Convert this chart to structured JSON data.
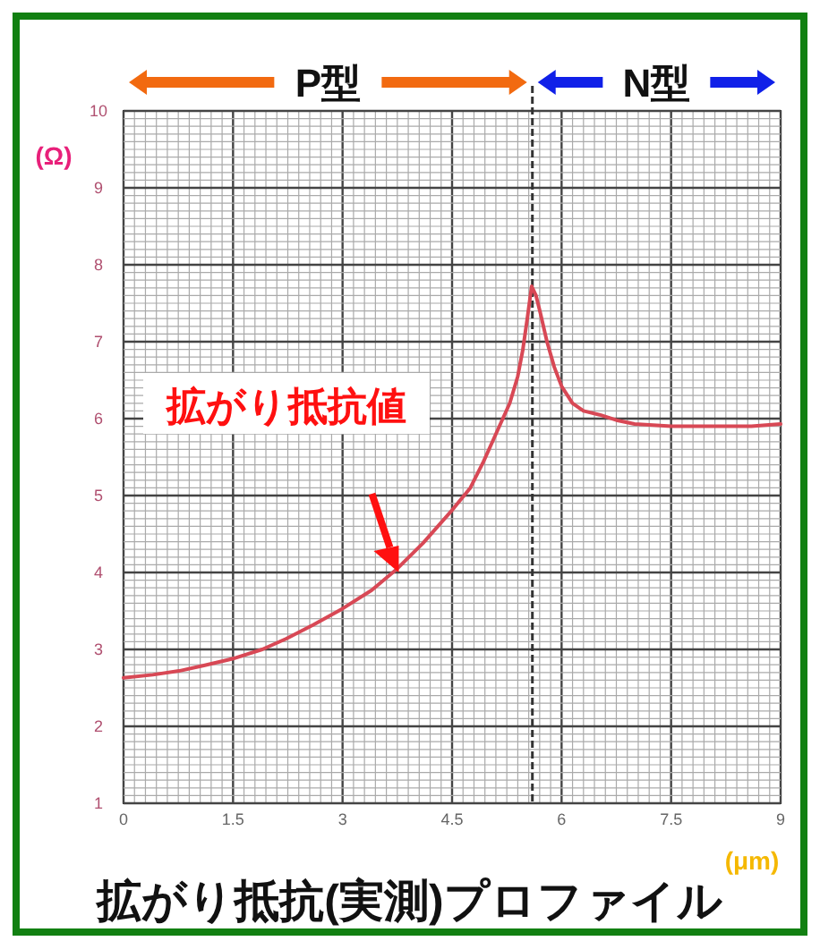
{
  "chart_data": {
    "type": "line",
    "title": "拡がり抵抗(実測)プロファイル",
    "xlabel": "(μm)",
    "ylabel": "(Ω)",
    "series": [
      {
        "color": "#d84855",
        "x": [
          0,
          0.4,
          0.76,
          1.1,
          1.5,
          1.9,
          2.23,
          2.6,
          3,
          3.4,
          3.75,
          4.1,
          4.5,
          4.75,
          4.93,
          5.1,
          5.29,
          5.4,
          5.47,
          5.53,
          5.59,
          5.65,
          5.71,
          5.8,
          5.9,
          6.0,
          6.15,
          6.3,
          6.52,
          6.75,
          7.0,
          7.5,
          8.0,
          8.24,
          8.6,
          9
        ],
        "values": [
          2.63,
          2.67,
          2.72,
          2.79,
          2.88,
          3.0,
          3.14,
          3.32,
          3.53,
          3.77,
          4.05,
          4.38,
          4.81,
          5.1,
          5.44,
          5.8,
          6.2,
          6.55,
          6.9,
          7.3,
          7.72,
          7.6,
          7.37,
          7.0,
          6.67,
          6.42,
          6.2,
          6.1,
          6.05,
          5.98,
          5.93,
          5.9,
          5.9,
          5.9,
          5.9,
          5.93
        ]
      }
    ],
    "xlim": [
      0,
      9
    ],
    "xticks": [
      0,
      1.5,
      3,
      4.5,
      6,
      7.5,
      9
    ],
    "ylim": [
      1,
      10
    ],
    "yticks": [
      1,
      2,
      3,
      4,
      5,
      6,
      7,
      8,
      9,
      10
    ],
    "grid": true,
    "ref_lines": [
      {
        "axis": "x",
        "value": 5.6,
        "line_style": "dashed",
        "color": "#333333"
      }
    ],
    "annotations": [
      "P型",
      "N型",
      "拡がり抵抗値"
    ]
  }
}
